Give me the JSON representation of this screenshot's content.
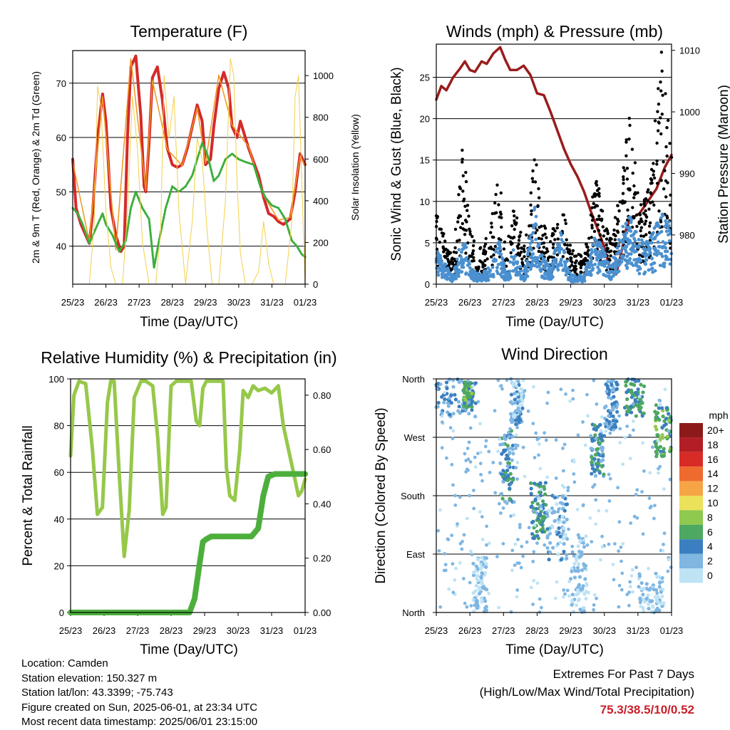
{
  "time_ticks": [
    "25/23",
    "26/23",
    "27/23",
    "28/23",
    "29/23",
    "30/23",
    "31/23",
    "01/23"
  ],
  "chart_data": [
    {
      "type": "line",
      "title": "Temperature (F)",
      "xlabel": "Time (Day/UTC)",
      "ylabel": "2m & 9m T (Red, Orange) & 2m Td (Green)",
      "y2label": "Solar Insolation (Yellow)",
      "ylim": [
        33,
        76
      ],
      "y2lim": [
        0,
        1120
      ],
      "yticks": [
        40,
        50,
        60,
        70
      ],
      "y2ticks": [
        0,
        200,
        400,
        600,
        800,
        1000
      ],
      "xlim": [
        0,
        7
      ],
      "grid": true,
      "series": [
        {
          "color": "#d42a2a",
          "x": [
            0,
            0.1,
            0.25,
            0.5,
            0.6,
            0.75,
            0.9,
            1.0,
            1.15,
            1.3,
            1.45,
            1.55,
            1.65,
            1.75,
            1.9,
            2.05,
            2.15,
            2.2,
            2.3,
            2.4,
            2.55,
            2.7,
            2.85,
            3.0,
            3.15,
            3.3,
            3.45,
            3.6,
            3.75,
            3.9,
            4.0,
            4.15,
            4.25,
            4.4,
            4.55,
            4.7,
            4.8,
            4.95,
            5.05,
            5.15,
            5.3,
            5.45,
            5.6,
            5.75,
            5.9,
            6.05,
            6.2,
            6.35,
            6.55,
            6.7,
            6.85,
            7.0
          ],
          "values": [
            56,
            47,
            44,
            40.5,
            46,
            60,
            68,
            63,
            47,
            42,
            39,
            40,
            60,
            73,
            75,
            64,
            51,
            50,
            59,
            71,
            73,
            67,
            58,
            55,
            54.5,
            55,
            58,
            62,
            66,
            63,
            55,
            56,
            62,
            69,
            72,
            69,
            62,
            60,
            63,
            61,
            58,
            55.5,
            53,
            49,
            46,
            45.5,
            44.5,
            44,
            45,
            50,
            57,
            55
          ]
        },
        {
          "color": "#f0961e",
          "x": [
            0,
            0.5,
            0.9,
            1.3,
            1.75,
            2.2,
            2.4,
            2.85,
            3.3,
            3.75,
            4.0,
            4.4,
            4.8,
            5.3,
            5.75,
            6.2,
            6.55,
            6.85,
            7.0
          ],
          "values": [
            55.5,
            40.8,
            67.5,
            39.3,
            74.5,
            50.3,
            70.5,
            57.8,
            54.8,
            65.5,
            55.3,
            71.5,
            62.3,
            58.3,
            49.3,
            44.8,
            45.3,
            56.5,
            54.8
          ]
        },
        {
          "color": "#3cae3c",
          "x": [
            0,
            0.15,
            0.3,
            0.5,
            0.75,
            0.9,
            1.0,
            1.2,
            1.4,
            1.6,
            1.75,
            1.9,
            2.1,
            2.3,
            2.45,
            2.6,
            2.8,
            3.0,
            3.2,
            3.4,
            3.6,
            3.75,
            3.9,
            4.05,
            4.25,
            4.4,
            4.6,
            4.8,
            5.0,
            5.2,
            5.45,
            5.65,
            5.8,
            6.0,
            6.2,
            6.4,
            6.6,
            6.75,
            6.9,
            7.0
          ],
          "values": [
            47,
            46,
            44,
            40.5,
            44,
            46,
            44,
            42,
            39,
            41,
            47,
            50,
            47,
            45,
            36,
            41,
            47,
            51,
            50,
            51,
            53,
            56,
            59,
            57,
            52,
            53,
            56,
            57,
            56,
            55.5,
            55,
            51,
            49,
            47.5,
            47,
            45,
            41,
            40,
            38.5,
            38
          ]
        },
        {
          "color": "#f2d04a",
          "x": [
            0,
            0.5,
            0.65,
            0.75,
            0.85,
            1.0,
            1.15,
            1.3,
            1.5,
            1.65,
            1.8,
            1.95,
            2.1,
            2.3,
            2.5,
            2.65,
            2.75,
            2.9,
            3.05,
            3.2,
            3.4,
            3.6,
            3.75,
            3.9,
            4.05,
            4.2,
            4.4,
            4.6,
            4.75,
            4.85,
            4.95,
            5.05,
            5.2,
            5.4,
            5.6,
            5.75,
            5.9,
            6.05,
            6.2,
            6.4,
            6.6,
            6.7,
            6.8,
            6.9,
            7.0
          ],
          "values": [
            0,
            0,
            300,
            950,
            850,
            350,
            80,
            0,
            0,
            350,
            900,
            650,
            200,
            0,
            0,
            250,
            1000,
            700,
            900,
            350,
            0,
            300,
            700,
            600,
            250,
            0,
            0,
            400,
            1080,
            1000,
            500,
            150,
            0,
            0,
            60,
            300,
            100,
            0,
            0,
            0,
            300,
            900,
            1000,
            500,
            0
          ]
        }
      ]
    },
    {
      "type": "line",
      "title": "Winds (mph) & Pressure (mb)",
      "xlabel": "Time (Day/UTC)",
      "ylabel": "Sonic Wind & Gust (Blue, Black)",
      "y2label": "Station Pressure (Maroon)",
      "ylim": [
        0,
        29
      ],
      "y2lim": [
        972,
        1011
      ],
      "yticks": [
        0,
        5,
        10,
        15,
        20,
        25
      ],
      "y2ticks": [
        980,
        990,
        1000,
        1010
      ],
      "xlim": [
        0,
        7
      ],
      "grid": true,
      "series": [
        {
          "color": "#9a1c1c",
          "x": [
            0,
            0.15,
            0.3,
            0.5,
            0.7,
            0.85,
            1.0,
            1.15,
            1.35,
            1.5,
            1.7,
            1.9,
            2.05,
            2.2,
            2.4,
            2.6,
            2.8,
            3.0,
            3.2,
            3.4,
            3.6,
            3.8,
            4.0,
            4.2,
            4.4,
            4.6,
            4.8,
            5.0,
            5.2,
            5.35,
            5.5,
            5.65,
            5.75,
            5.9,
            6.05,
            6.3,
            6.55,
            6.8,
            7.0
          ],
          "values": [
            1002,
            1004.2,
            1003.5,
            1005.6,
            1007,
            1008.2,
            1006.8,
            1006.5,
            1008.2,
            1007.8,
            1009.5,
            1010.5,
            1008.5,
            1006.8,
            1006.8,
            1007.5,
            1006,
            1003,
            1002.7,
            1000,
            997,
            994,
            991.5,
            989.5,
            987,
            983.8,
            981,
            978,
            974,
            973.6,
            977,
            981,
            982.3,
            983,
            983.5,
            985.5,
            987.5,
            991,
            993
          ]
        },
        {
          "color": "#000000",
          "x": [
            0,
            0.5,
            0.8,
            1.0,
            1.3,
            1.6,
            1.85,
            2.1,
            2.3,
            2.6,
            2.95,
            3.15,
            3.4,
            3.7,
            4.0,
            4.4,
            4.75,
            4.95,
            5.2,
            5.5,
            5.75,
            6.05,
            6.35,
            6.7,
            7.0
          ],
          "values": [
            8,
            3,
            17,
            6,
            4,
            6,
            13,
            4,
            10,
            4,
            15,
            7,
            5,
            11,
            4,
            3,
            13,
            8,
            5,
            11,
            19,
            9,
            11,
            26,
            14
          ]
        },
        {
          "color": "#4a90d0",
          "x": [
            0,
            0.5,
            0.8,
            1.0,
            1.3,
            1.6,
            1.85,
            2.1,
            2.3,
            2.6,
            2.95,
            3.15,
            3.4,
            3.7,
            4.0,
            4.4,
            4.75,
            4.95,
            5.2,
            5.5,
            5.75,
            6.05,
            6.35,
            6.7,
            7.0
          ],
          "values": [
            4,
            1,
            6,
            2,
            1,
            2,
            5,
            1,
            4,
            1,
            9,
            3,
            2,
            6,
            1,
            1,
            6,
            4,
            2,
            6,
            8,
            5,
            5,
            8,
            7
          ]
        }
      ]
    },
    {
      "type": "line",
      "title": "Relative Humidity (%) & Precipitation (in)",
      "xlabel": "Time (Day/UTC)",
      "ylabel": "Percent & Total Rainfall",
      "ylim": [
        0,
        100
      ],
      "y2lim": [
        0,
        0.86
      ],
      "yticks": [
        0,
        20,
        40,
        60,
        80,
        100
      ],
      "y2ticks": [
        0.0,
        0.2,
        0.4,
        0.6,
        0.8
      ],
      "xlim": [
        0,
        7
      ],
      "grid": true,
      "series": [
        {
          "color": "#96c84a",
          "x": [
            0,
            0.1,
            0.25,
            0.45,
            0.65,
            0.8,
            0.95,
            1.1,
            1.2,
            1.3,
            1.45,
            1.6,
            1.75,
            1.9,
            2.1,
            2.25,
            2.45,
            2.6,
            2.75,
            2.85,
            3.0,
            3.15,
            3.3,
            3.45,
            3.6,
            3.75,
            3.85,
            3.95,
            4.05,
            4.2,
            4.35,
            4.55,
            4.65,
            4.75,
            4.9,
            5.05,
            5.15,
            5.3,
            5.45,
            5.6,
            5.8,
            6.0,
            6.2,
            6.35,
            6.5,
            6.65,
            6.8,
            6.9,
            7.0
          ],
          "values": [
            67,
            93,
            99,
            98,
            70,
            42,
            45,
            90,
            99,
            99,
            60,
            24,
            44,
            92,
            99,
            99,
            97,
            75,
            42,
            45,
            97,
            99,
            99,
            99,
            99,
            82,
            80,
            96,
            99,
            99,
            99,
            99,
            62,
            50,
            48,
            70,
            95,
            92,
            97,
            95,
            96,
            94,
            97,
            80,
            70,
            60,
            50,
            52,
            57
          ]
        },
        {
          "color": "#4caf3c",
          "x": [
            0,
            1,
            2,
            3.55,
            3.7,
            3.85,
            3.95,
            4.05,
            4.2,
            4.6,
            5.0,
            5.4,
            5.6,
            5.75,
            5.9,
            6.1,
            6.5,
            7.0
          ],
          "values": [
            0,
            0,
            0,
            0,
            0.05,
            0.18,
            0.26,
            0.27,
            0.28,
            0.28,
            0.28,
            0.28,
            0.31,
            0.43,
            0.5,
            0.51,
            0.51,
            0.51
          ]
        }
      ]
    },
    {
      "type": "scatter",
      "title": "Wind Direction",
      "xlabel": "Time (Day/UTC)",
      "ylabel": "Direction (Colored By Speed)",
      "ylim": [
        0,
        360
      ],
      "ytick_labels": [
        "North",
        "East",
        "South",
        "West",
        "North"
      ],
      "xlim": [
        0,
        7
      ],
      "grid": true,
      "colorbar": {
        "title": "mph",
        "labels": [
          "20+",
          "18",
          "16",
          "14",
          "12",
          "10",
          "8",
          "6",
          "4",
          "2",
          "0"
        ],
        "colors": [
          "#8c1a1a",
          "#b21e24",
          "#d92b26",
          "#ef6a2e",
          "#f6a546",
          "#ece15a",
          "#8fc94f",
          "#4da860",
          "#3b7fc0",
          "#7fb6e2",
          "#bde3f5"
        ]
      },
      "clusters": [
        {
          "x": [
            0.0,
            1.2
          ],
          "y": [
            300,
            360
          ],
          "speed": 3
        },
        {
          "x": [
            0.8,
            1.1
          ],
          "y": [
            315,
            355
          ],
          "speed": 6
        },
        {
          "x": [
            1.1,
            1.5
          ],
          "y": [
            0,
            90
          ],
          "speed": 1
        },
        {
          "x": [
            1.9,
            2.3
          ],
          "y": [
            170,
            280
          ],
          "speed": 4
        },
        {
          "x": [
            2.2,
            2.6
          ],
          "y": [
            290,
            360
          ],
          "speed": 2
        },
        {
          "x": [
            2.8,
            3.3
          ],
          "y": [
            110,
            200
          ],
          "speed": 5
        },
        {
          "x": [
            3.3,
            3.9
          ],
          "y": [
            80,
            180
          ],
          "speed": 2
        },
        {
          "x": [
            4.0,
            4.5
          ],
          "y": [
            0,
            120
          ],
          "speed": 1
        },
        {
          "x": [
            4.6,
            5.0
          ],
          "y": [
            210,
            290
          ],
          "speed": 4
        },
        {
          "x": [
            5.0,
            5.4
          ],
          "y": [
            280,
            360
          ],
          "speed": 3
        },
        {
          "x": [
            5.6,
            6.2
          ],
          "y": [
            300,
            360
          ],
          "speed": 5
        },
        {
          "x": [
            6.5,
            7.0
          ],
          "y": [
            240,
            320
          ],
          "speed": 6
        },
        {
          "x": [
            6.0,
            6.8
          ],
          "y": [
            0,
            60
          ],
          "speed": 1
        }
      ]
    }
  ],
  "footer": {
    "location": "Location: Camden",
    "elevation": "Station elevation: 150.327 m",
    "latlon": "Station lat/lon: 43.3399; -75.743",
    "created": "Figure created on Sun, 2025-06-01, at 23:34 UTC",
    "recent": "Most recent data timestamp: 2025/06/01 23:15:00"
  },
  "extremes": {
    "line1": "Extremes For Past 7 Days",
    "line2": "(High/Low/Max Wind/Total Precipitation)",
    "values": "75.3/38.5/10/0.52"
  }
}
